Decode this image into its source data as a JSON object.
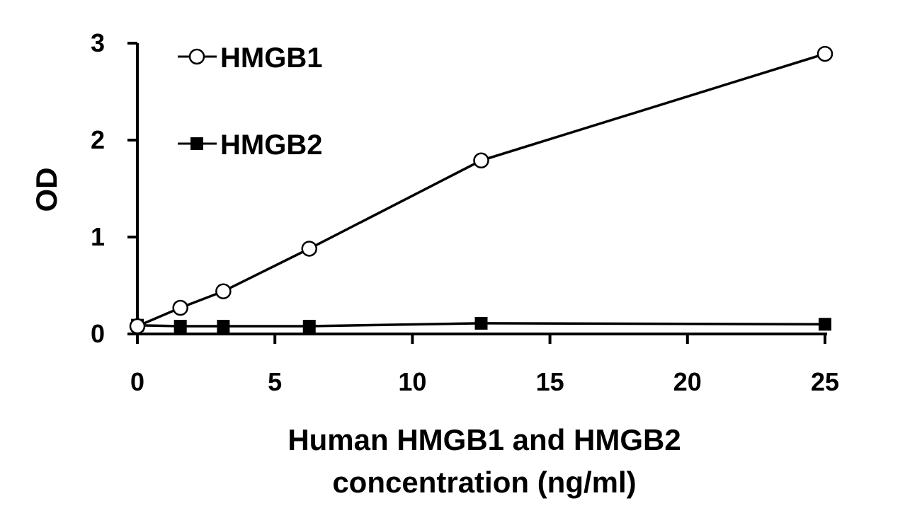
{
  "chart_data": {
    "type": "line",
    "title": "",
    "xlabel": "Human HMGB1 and HMGB2",
    "xlabel_line2": "concentration (ng/ml)",
    "ylabel": "OD",
    "x": [
      0,
      1.5625,
      3.125,
      6.25,
      12.5,
      25
    ],
    "xlim": [
      0,
      25
    ],
    "ylim": [
      0,
      3
    ],
    "xticks": [
      "0",
      "5",
      "10",
      "15",
      "20",
      "25"
    ],
    "yticks": [
      "0",
      "1",
      "2",
      "3"
    ],
    "grid": false,
    "legend_position": "top-left",
    "series": [
      {
        "name": "HMGB1",
        "marker": "open-circle",
        "color": "#000000",
        "values": [
          0.08,
          0.27,
          0.44,
          0.88,
          1.79,
          2.89
        ]
      },
      {
        "name": "HMGB2",
        "marker": "filled-square",
        "color": "#000000",
        "values": [
          0.09,
          0.08,
          0.08,
          0.08,
          0.11,
          0.1
        ]
      }
    ]
  }
}
